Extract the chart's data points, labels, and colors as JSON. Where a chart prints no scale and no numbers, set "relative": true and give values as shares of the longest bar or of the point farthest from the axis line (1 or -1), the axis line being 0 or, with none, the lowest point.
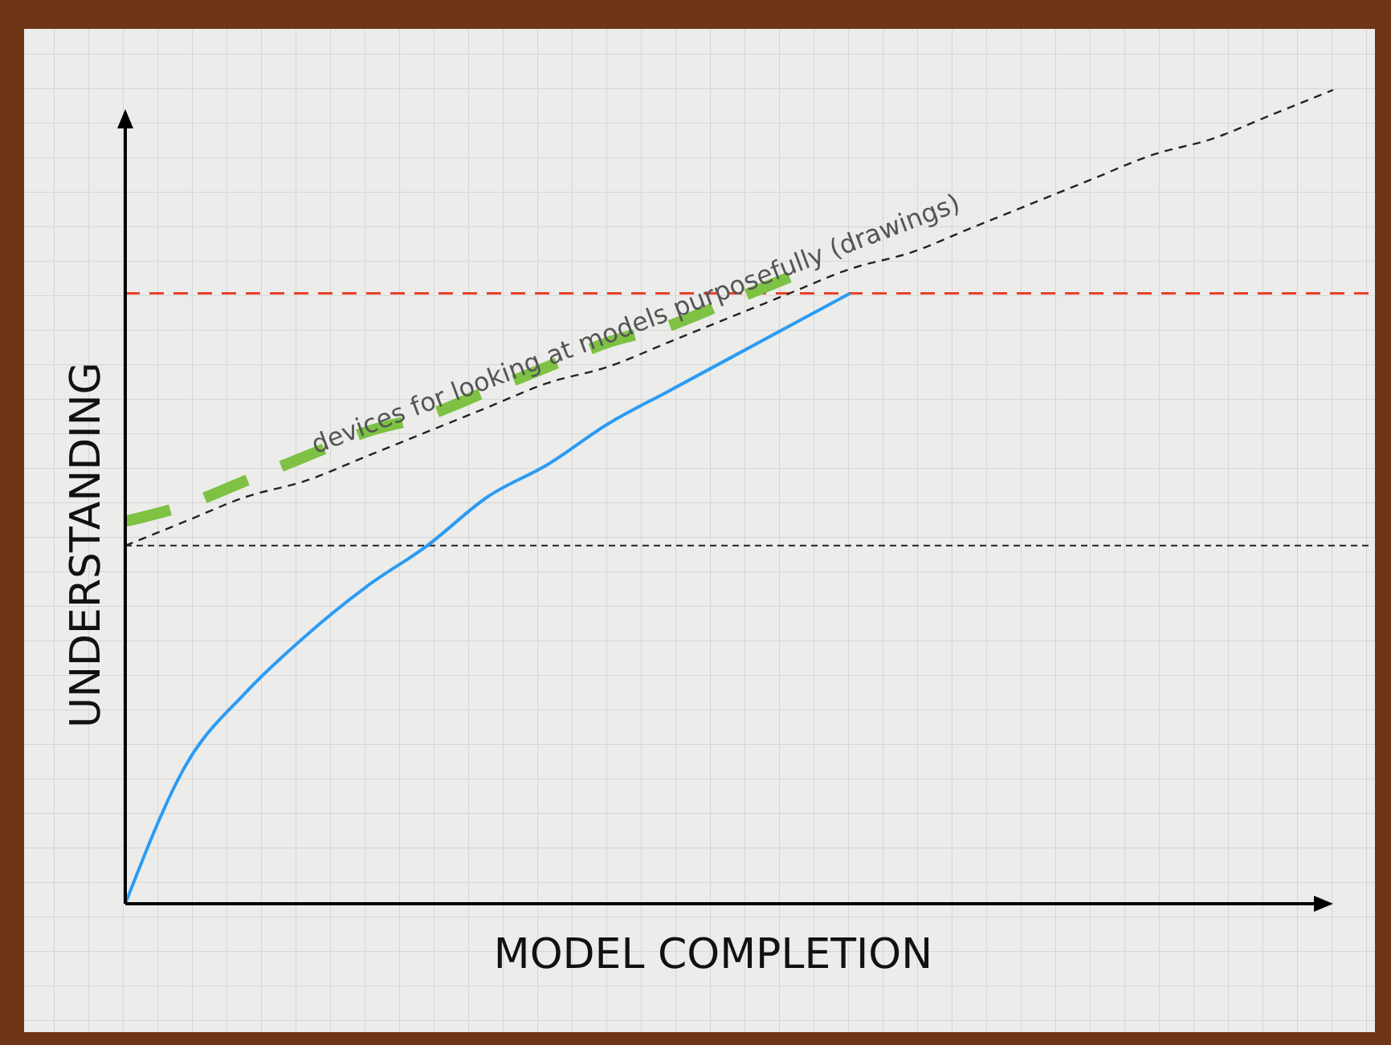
{
  "chart_data": {
    "type": "line",
    "relative": true,
    "xlabel": "MODEL COMPLETION",
    "ylabel": "UNDERSTANDING",
    "categories": [
      null,
      null,
      null,
      null,
      null,
      null,
      null,
      null,
      null,
      null,
      null,
      null,
      null,
      null,
      null,
      null,
      null,
      null,
      null,
      null,
      null
    ],
    "series": [
      {
        "color": "#222222",
        "line_style": "dashed",
        "values": [
          0.44,
          0.47,
          0.5,
          0.52,
          0.55,
          0.58,
          0.61,
          0.64,
          0.66,
          0.69,
          0.72,
          0.75,
          0.78,
          0.8,
          0.83,
          0.86,
          0.89,
          0.92,
          0.94,
          0.97,
          1.0
        ]
      },
      {
        "color": "#7dc242",
        "line_style": "dashed",
        "values": [
          0.47,
          0.49,
          0.52,
          0.55,
          0.58,
          0.6,
          0.63,
          0.66,
          0.69,
          0.71,
          0.74,
          0.77,
          null,
          null,
          null,
          null,
          null,
          null,
          null,
          null,
          null
        ]
      },
      {
        "color": "#2b9bf4",
        "line_style": "solid",
        "values": [
          0,
          0.17,
          0.26,
          0.33,
          0.39,
          0.44,
          0.5,
          0.54,
          0.59,
          0.63,
          0.67,
          0.71,
          0.75,
          null,
          null,
          null,
          null,
          null,
          null,
          null,
          null
        ]
      }
    ],
    "ref_lines": [
      {
        "axis": "y",
        "value": 0.75,
        "color": "#e8402a",
        "line_style": "dashed"
      },
      {
        "axis": "y",
        "value": 0.44,
        "color": "#222222",
        "line_style": "dashed"
      }
    ],
    "annotations": [
      "devices for looking at models purposefully (drawings)"
    ]
  }
}
